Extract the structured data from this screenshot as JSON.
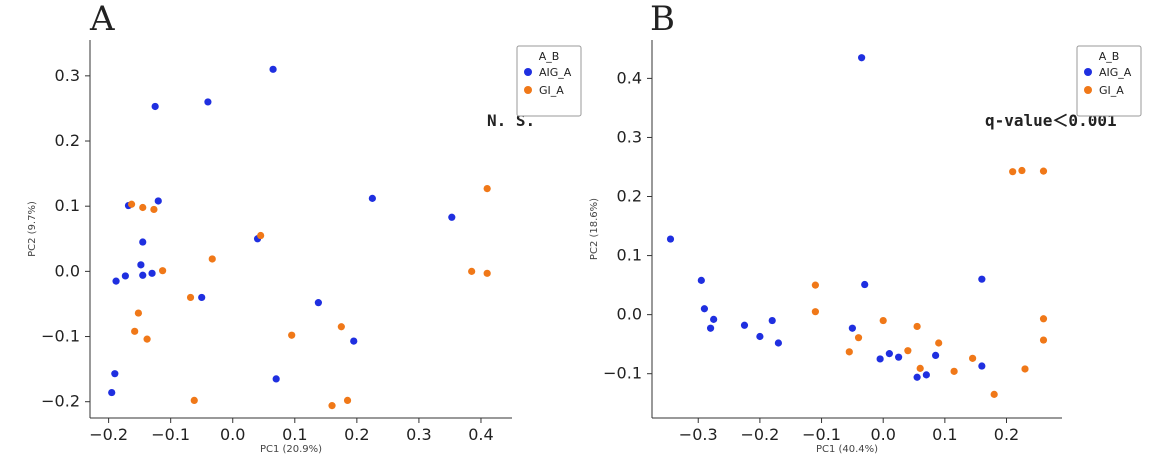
{
  "colors": {
    "AIG_A": "#1f2fe0",
    "GI_A": "#f07818"
  },
  "chart_data": [
    {
      "type": "scatter",
      "panel": "A",
      "xlabel": "PC1    (20.9%)",
      "ylabel": "PC2    (9.7%)",
      "xlim": [
        -0.23,
        0.45
      ],
      "ylim": [
        -0.225,
        0.355
      ],
      "xticks": [
        -0.2,
        -0.1,
        0.0,
        0.1,
        0.2,
        0.3,
        0.4
      ],
      "xtick_labels": [
        "−0.2",
        "−0.1",
        "0.0",
        "0.1",
        "0.2",
        "0.3",
        "0.4"
      ],
      "yticks": [
        -0.2,
        -0.1,
        0.0,
        0.1,
        0.2,
        0.3
      ],
      "ytick_labels": [
        "−0.2",
        "−0.1",
        "0.0",
        "0.1",
        "0.2",
        "0.3"
      ],
      "legend": {
        "title": "A_B",
        "placement": "top-right",
        "entries": [
          "AIG_A",
          "GI_A"
        ]
      },
      "annotation": "N. S.",
      "series": [
        {
          "name": "AIG_A",
          "points": [
            [
              0.065,
              0.31
            ],
            [
              -0.04,
              0.26
            ],
            [
              -0.125,
              0.253
            ],
            [
              -0.12,
              0.108
            ],
            [
              -0.168,
              0.101
            ],
            [
              -0.145,
              0.045
            ],
            [
              -0.148,
              0.01
            ],
            [
              -0.173,
              -0.007
            ],
            [
              -0.188,
              -0.015
            ],
            [
              -0.145,
              -0.006
            ],
            [
              -0.13,
              -0.003
            ],
            [
              0.04,
              0.05
            ],
            [
              0.225,
              0.112
            ],
            [
              0.353,
              0.083
            ],
            [
              -0.05,
              -0.04
            ],
            [
              0.138,
              -0.048
            ],
            [
              0.195,
              -0.107
            ],
            [
              0.07,
              -0.165
            ],
            [
              -0.19,
              -0.157
            ],
            [
              -0.195,
              -0.186
            ]
          ]
        },
        {
          "name": "GI_A",
          "points": [
            [
              -0.163,
              0.103
            ],
            [
              -0.145,
              0.098
            ],
            [
              -0.127,
              0.095
            ],
            [
              0.045,
              0.055
            ],
            [
              -0.033,
              0.019
            ],
            [
              -0.113,
              0.001
            ],
            [
              -0.068,
              -0.04
            ],
            [
              -0.152,
              -0.064
            ],
            [
              -0.158,
              -0.092
            ],
            [
              -0.138,
              -0.104
            ],
            [
              0.095,
              -0.098
            ],
            [
              0.175,
              -0.085
            ],
            [
              0.41,
              0.127
            ],
            [
              0.385,
              0.0
            ],
            [
              0.41,
              -0.003
            ],
            [
              -0.062,
              -0.198
            ],
            [
              0.16,
              -0.206
            ],
            [
              0.185,
              -0.198
            ]
          ]
        }
      ]
    },
    {
      "type": "scatter",
      "panel": "B",
      "xlabel": "PC1    (40.4%)",
      "ylabel": "PC2    (18.6%)",
      "xlim": [
        -0.375,
        0.29
      ],
      "ylim": [
        -0.175,
        0.465
      ],
      "xticks": [
        -0.3,
        -0.2,
        -0.1,
        0.0,
        0.1,
        0.2
      ],
      "xtick_labels": [
        "−0.3",
        "−0.2",
        "−0.1",
        "0.0",
        "0.1",
        "0.2"
      ],
      "yticks": [
        -0.1,
        0.0,
        0.1,
        0.2,
        0.3,
        0.4
      ],
      "ytick_labels": [
        "−0.1",
        "0.0",
        "0.1",
        "0.2",
        "0.3",
        "0.4"
      ],
      "legend": {
        "title": "A_B",
        "placement": "top-right",
        "entries": [
          "AIG_A",
          "GI_A"
        ]
      },
      "annotation": "q-value＜0.001",
      "series": [
        {
          "name": "AIG_A",
          "points": [
            [
              -0.035,
              0.435
            ],
            [
              -0.345,
              0.128
            ],
            [
              -0.295,
              0.058
            ],
            [
              -0.29,
              0.01
            ],
            [
              -0.275,
              -0.008
            ],
            [
              -0.28,
              -0.023
            ],
            [
              -0.225,
              -0.018
            ],
            [
              -0.2,
              -0.037
            ],
            [
              -0.18,
              -0.01
            ],
            [
              -0.17,
              -0.048
            ],
            [
              -0.03,
              0.051
            ],
            [
              -0.05,
              -0.023
            ],
            [
              -0.005,
              -0.075
            ],
            [
              0.01,
              -0.066
            ],
            [
              0.025,
              -0.072
            ],
            [
              0.085,
              -0.069
            ],
            [
              0.055,
              -0.106
            ],
            [
              0.07,
              -0.102
            ],
            [
              0.16,
              -0.087
            ],
            [
              0.16,
              0.06
            ]
          ]
        },
        {
          "name": "GI_A",
          "points": [
            [
              -0.11,
              0.05
            ],
            [
              -0.11,
              0.005
            ],
            [
              -0.055,
              -0.063
            ],
            [
              -0.04,
              -0.039
            ],
            [
              0.0,
              -0.01
            ],
            [
              0.04,
              -0.061
            ],
            [
              0.055,
              -0.02
            ],
            [
              0.06,
              -0.091
            ],
            [
              0.09,
              -0.048
            ],
            [
              0.115,
              -0.096
            ],
            [
              0.145,
              -0.074
            ],
            [
              0.18,
              -0.135
            ],
            [
              0.21,
              0.242
            ],
            [
              0.225,
              0.244
            ],
            [
              0.26,
              0.243
            ],
            [
              0.23,
              -0.092
            ],
            [
              0.26,
              -0.007
            ],
            [
              0.26,
              -0.043
            ]
          ]
        }
      ]
    }
  ]
}
